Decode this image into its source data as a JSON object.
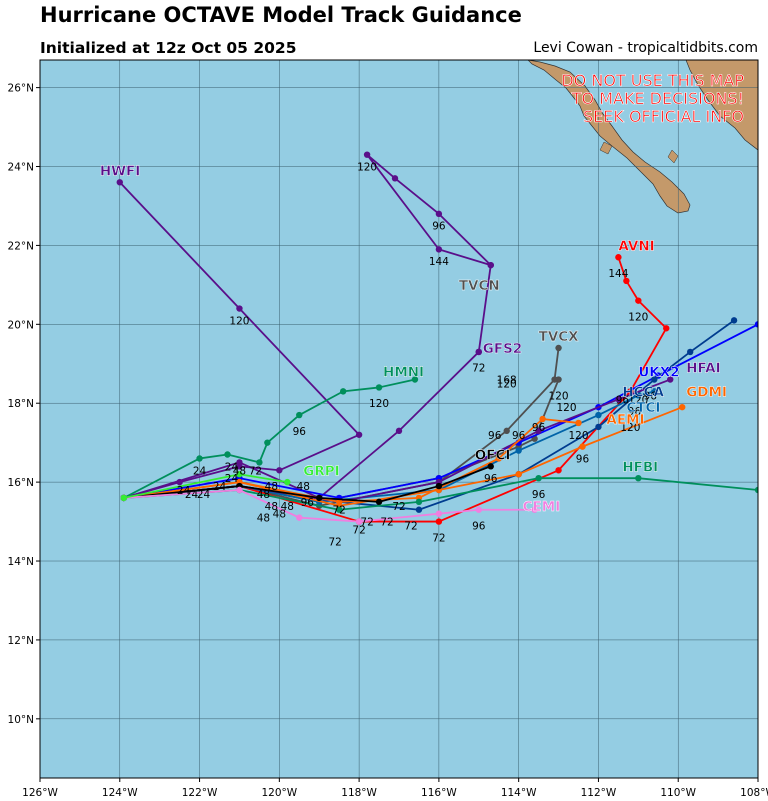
{
  "header": {
    "title": "Hurricane OCTAVE Model Track Guidance",
    "subtitle": "Initialized at 12z Oct 05 2025",
    "credit": "Levi Cowan - tropicaltidbits.com"
  },
  "warning": [
    "DO NOT USE THIS MAP",
    "TO MAKE DECISIONS!",
    "SEEK OFFICIAL INFO"
  ],
  "map": {
    "lon_range": [
      -126,
      -108
    ],
    "lat_range": [
      8.5,
      26.7
    ],
    "ocean_color": "#94cde3",
    "land_color": "#c4996a",
    "lon_ticks": [
      {
        "v": -126,
        "label": "126°W"
      },
      {
        "v": -124,
        "label": "124°W"
      },
      {
        "v": -122,
        "label": "122°W"
      },
      {
        "v": -120,
        "label": "120°W"
      },
      {
        "v": -118,
        "label": "118°W"
      },
      {
        "v": -116,
        "label": "116°W"
      },
      {
        "v": -114,
        "label": "114°W"
      },
      {
        "v": -112,
        "label": "112°W"
      },
      {
        "v": -110,
        "label": "110°W"
      },
      {
        "v": -108,
        "label": "108°W"
      }
    ],
    "lat_ticks": [
      {
        "v": 10,
        "label": "10°N"
      },
      {
        "v": 12,
        "label": "12°N"
      },
      {
        "v": 14,
        "label": "14°N"
      },
      {
        "v": 16,
        "label": "16°N"
      },
      {
        "v": 18,
        "label": "18°N"
      },
      {
        "v": 20,
        "label": "20°N"
      },
      {
        "v": 22,
        "label": "22°N"
      },
      {
        "v": 24,
        "label": "24°N"
      },
      {
        "v": 26,
        "label": "26°N"
      }
    ]
  },
  "tracks": [
    {
      "name": "HWFI",
      "color": "#5a0f8a",
      "label_at": [
        -124.5,
        23.9
      ],
      "points": [
        [
          -123.9,
          15.6
        ],
        [
          -122.5,
          16.0
        ],
        [
          -121.0,
          16.4
        ],
        [
          -120.0,
          16.3
        ],
        [
          -118.0,
          17.2
        ],
        [
          -121.0,
          20.4
        ],
        [
          -124.0,
          23.6
        ]
      ],
      "hours": [
        {
          "h": "120",
          "at": [
            -121.0,
            20.1
          ]
        }
      ]
    },
    {
      "name": "GFS2",
      "color": "#5a0f8a",
      "label_at": [
        -114.9,
        19.4
      ],
      "points": [
        [
          -123.9,
          15.6
        ],
        [
          -121.0,
          16.5
        ],
        [
          -119.0,
          15.6
        ],
        [
          -117.0,
          17.3
        ],
        [
          -115.0,
          19.3
        ],
        [
          -14.7,
          21.5
        ],
        [
          -116.0,
          21.9
        ],
        [
          -117.8,
          24.3
        ],
        [
          -117.1,
          23.7
        ],
        [
          -116.0,
          22.8
        ],
        [
          -114.7,
          21.5
        ],
        [
          -115.0,
          19.3
        ]
      ],
      "hours": [
        {
          "h": "72",
          "at": [
            -115.0,
            18.9
          ]
        },
        {
          "h": "144",
          "at": [
            -116.0,
            21.6
          ]
        },
        {
          "h": "120",
          "at": [
            -117.8,
            24.0
          ]
        },
        {
          "h": "96",
          "at": [
            -116.0,
            22.5
          ]
        }
      ]
    },
    {
      "name": "TVCN",
      "color": "#4f4f4f",
      "label_at": [
        -115.5,
        21.0
      ],
      "points": [
        [
          -123.9,
          15.6
        ],
        [
          -121.0,
          15.9
        ],
        [
          -119.0,
          15.5
        ],
        [
          -116.0,
          16.1
        ],
        [
          -114.0,
          16.9
        ],
        [
          -113.6,
          17.1
        ],
        [
          -113.0,
          18.6
        ]
      ],
      "hours": [
        {
          "h": "96",
          "at": [
            -114.6,
            17.2
          ]
        },
        {
          "h": "120",
          "at": [
            -114.3,
            18.5
          ]
        }
      ]
    },
    {
      "name": "TVCX",
      "color": "#4f4f4f",
      "label_at": [
        -113.5,
        19.7
      ],
      "points": [
        [
          -123.9,
          15.6
        ],
        [
          -121.0,
          15.9
        ],
        [
          -119.0,
          15.4
        ],
        [
          -116.0,
          16.0
        ],
        [
          -114.3,
          17.3
        ],
        [
          -113.1,
          18.6
        ],
        [
          -113.0,
          19.4
        ]
      ],
      "hours": [
        {
          "h": "120",
          "at": [
            -113.0,
            18.2
          ]
        }
      ]
    },
    {
      "name": "HMNI",
      "color": "#008f5c",
      "label_at": [
        -117.4,
        18.8
      ],
      "points": [
        [
          -123.9,
          15.6
        ],
        [
          -122.0,
          16.6
        ],
        [
          -121.3,
          16.7
        ],
        [
          -120.5,
          16.5
        ],
        [
          -120.3,
          17.0
        ],
        [
          -119.5,
          17.7
        ],
        [
          -118.4,
          18.3
        ],
        [
          -117.5,
          18.4
        ],
        [
          -116.6,
          18.6
        ]
      ],
      "hours": [
        {
          "h": "96",
          "at": [
            -119.5,
            17.3
          ]
        },
        {
          "h": "120",
          "at": [
            -117.5,
            18.0
          ]
        }
      ]
    },
    {
      "name": "AVNI",
      "color": "#ff0000",
      "label_at": [
        -111.5,
        22.0
      ],
      "points": [
        [
          -123.9,
          15.6
        ],
        [
          -121.0,
          15.9
        ],
        [
          -118.0,
          15.0
        ],
        [
          -116.0,
          15.0
        ],
        [
          -113.0,
          16.3
        ],
        [
          -111.2,
          18.3
        ],
        [
          -10.3,
          19.9
        ],
        [
          -111.0,
          20.6
        ],
        [
          -111.3,
          21.1
        ],
        [
          -111.5,
          21.7
        ]
      ],
      "hours": [
        {
          "h": "72",
          "at": [
            -116.0,
            14.6
          ]
        },
        {
          "h": "120",
          "at": [
            -111.0,
            20.2
          ]
        },
        {
          "h": "144",
          "at": [
            -111.5,
            21.3
          ]
        }
      ]
    },
    {
      "name": "UKX2",
      "color": "#0000ff",
      "label_at": [
        -111.0,
        18.8
      ],
      "points": [
        [
          -123.9,
          15.6
        ],
        [
          -121.0,
          16.1
        ],
        [
          -118.5,
          15.6
        ],
        [
          -116.0,
          16.1
        ],
        [
          -114.0,
          17.0
        ],
        [
          -112.0,
          17.9
        ],
        [
          -110.5,
          18.7
        ],
        [
          -108.0,
          20.0
        ]
      ],
      "hours": []
    },
    {
      "name": "HCCA",
      "color": "#003c8f",
      "label_at": [
        -111.4,
        18.3
      ],
      "points": [
        [
          -123.9,
          15.6
        ],
        [
          -121.0,
          15.9
        ],
        [
          -118.5,
          15.5
        ],
        [
          -116.5,
          15.3
        ],
        [
          -114.0,
          16.2
        ],
        [
          -112.0,
          17.4
        ],
        [
          -110.6,
          18.6
        ],
        [
          -109.7,
          19.3
        ],
        [
          -108.6,
          20.1
        ]
      ],
      "hours": [
        {
          "h": "96",
          "at": [
            -111.4,
            18.1
          ]
        }
      ]
    },
    {
      "name": "CTCI",
      "color": "#0063a8",
      "label_at": [
        -111.3,
        17.9
      ],
      "points": [
        [
          -123.9,
          15.6
        ],
        [
          -121.0,
          15.9
        ],
        [
          -119.0,
          15.5
        ],
        [
          -116.0,
          15.8
        ],
        [
          -114.0,
          16.8
        ],
        [
          -112.0,
          17.7
        ],
        [
          -111.0,
          18.2
        ],
        [
          -110.6,
          18.3
        ]
      ],
      "hours": [
        {
          "h": "120",
          "at": [
            -111.0,
            18.1
          ]
        }
      ]
    },
    {
      "name": "HFAI",
      "color": "#5a0f8a",
      "label_at": [
        -109.8,
        18.9
      ],
      "points": [
        [
          -123.9,
          15.6
        ],
        [
          -121.0,
          15.9
        ],
        [
          -118.5,
          15.5
        ],
        [
          -116.0,
          16.0
        ],
        [
          -113.5,
          17.3
        ],
        [
          -111.5,
          18.1
        ],
        [
          -10.2,
          18.6
        ]
      ],
      "hours": []
    },
    {
      "name": "GDMI",
      "color": "#ff6600",
      "label_at": [
        -9.8,
        18.3
      ],
      "points": [
        [
          -123.9,
          15.6
        ],
        [
          -121.0,
          16.0
        ],
        [
          -118.5,
          15.4
        ],
        [
          -116.0,
          15.8
        ],
        [
          -114.0,
          16.2
        ],
        [
          -112.4,
          16.9
        ],
        [
          -109.9,
          17.9
        ]
      ],
      "hours": [
        {
          "h": "96",
          "at": [
            -112.4,
            16.6
          ]
        },
        {
          "h": "120",
          "at": [
            -111.2,
            17.4
          ]
        }
      ]
    },
    {
      "name": "AEMI",
      "color": "#ff6600",
      "label_at": [
        -111.8,
        17.6
      ],
      "points": [
        [
          -123.9,
          15.6
        ],
        [
          -121.0,
          16.0
        ],
        [
          -118.5,
          15.5
        ],
        [
          -116.5,
          15.6
        ],
        [
          -114.5,
          16.6
        ],
        [
          -113.4,
          17.6
        ],
        [
          -112.5,
          17.5
        ]
      ],
      "hours": [
        {
          "h": "120",
          "at": [
            -112.5,
            17.2
          ]
        }
      ]
    },
    {
      "name": "OFCI",
      "color": "#000000",
      "label_at": [
        -115.1,
        16.7
      ],
      "points": [
        [
          -123.9,
          15.6
        ],
        [
          -121.0,
          15.9
        ],
        [
          -119.0,
          15.6
        ],
        [
          -117.5,
          15.5
        ],
        [
          -116.0,
          15.9
        ],
        [
          -114.7,
          16.4
        ]
      ],
      "hours": [
        {
          "h": "96",
          "at": [
            -114.7,
            16.1
          ]
        }
      ]
    },
    {
      "name": "HFBI",
      "color": "#008f5c",
      "label_at": [
        -11.4,
        16.4
      ],
      "points": [
        [
          -123.9,
          15.6
        ],
        [
          -121.0,
          15.8
        ],
        [
          -118.5,
          15.3
        ],
        [
          -116.5,
          15.5
        ],
        [
          -113.5,
          16.1
        ],
        [
          -111.0,
          16.1
        ],
        [
          -108.0,
          15.8
        ]
      ],
      "hours": [
        {
          "h": "96",
          "at": [
            -113.5,
            15.7
          ]
        }
      ]
    },
    {
      "name": "CEMI",
      "color": "#f07fe0",
      "label_at": [
        -113.9,
        15.4
      ],
      "points": [
        [
          -123.9,
          15.6
        ],
        [
          -121.0,
          15.8
        ],
        [
          -119.5,
          15.1
        ],
        [
          -118.0,
          15.0
        ],
        [
          -116.0,
          15.2
        ],
        [
          -115.0,
          15.3
        ],
        [
          -113.6,
          15.3
        ]
      ],
      "hours": [
        {
          "h": "96",
          "at": [
            -115.0,
            14.9
          ]
        }
      ]
    },
    {
      "name": "GRPI",
      "color": "#33ee33",
      "label_at": [
        -119.4,
        16.3
      ],
      "points": [
        [
          -123.9,
          15.6
        ],
        [
          -121.0,
          16.2
        ],
        [
          -119.8,
          16.0
        ]
      ],
      "hours": [
        {
          "h": "48",
          "at": [
            -120.2,
            15.9
          ]
        }
      ]
    }
  ],
  "stray_hours": [
    {
      "h": "72",
      "at": [
        -118.6,
        14.5
      ]
    },
    {
      "h": "72",
      "at": [
        -118.0,
        14.8
      ]
    },
    {
      "h": "72",
      "at": [
        -117.8,
        15.0
      ]
    },
    {
      "h": "72",
      "at": [
        -117.3,
        15.0
      ]
    },
    {
      "h": "72",
      "at": [
        -116.7,
        14.9
      ]
    },
    {
      "h": "72",
      "at": [
        -118.5,
        15.3
      ]
    },
    {
      "h": "72",
      "at": [
        -117.0,
        15.4
      ]
    },
    {
      "h": "96",
      "at": [
        -119.3,
        15.5
      ]
    },
    {
      "h": "48",
      "at": [
        -120.4,
        15.1
      ]
    },
    {
      "h": "48",
      "at": [
        -120.0,
        15.2
      ]
    },
    {
      "h": "48",
      "at": [
        -119.8,
        15.4
      ]
    },
    {
      "h": "48",
      "at": [
        -120.4,
        15.7
      ]
    },
    {
      "h": "48",
      "at": [
        -120.2,
        15.4
      ]
    },
    {
      "h": "48",
      "at": [
        -121.0,
        16.3
      ]
    },
    {
      "h": "72",
      "at": [
        -120.6,
        16.3
      ]
    },
    {
      "h": "24",
      "at": [
        -122.0,
        16.3
      ]
    },
    {
      "h": "24",
      "at": [
        -122.2,
        15.7
      ]
    },
    {
      "h": "24",
      "at": [
        -121.9,
        15.7
      ]
    },
    {
      "h": "24",
      "at": [
        -122.4,
        15.8
      ]
    },
    {
      "h": "24",
      "at": [
        -121.5,
        15.9
      ]
    },
    {
      "h": "24",
      "at": [
        -121.2,
        16.4
      ]
    },
    {
      "h": "24",
      "at": [
        -121.2,
        16.1
      ]
    },
    {
      "h": "48",
      "at": [
        -119.4,
        15.9
      ]
    },
    {
      "h": "168",
      "at": [
        -114.3,
        18.6
      ]
    },
    {
      "h": "96",
      "at": [
        -114.0,
        17.2
      ]
    },
    {
      "h": "96",
      "at": [
        -113.5,
        17.4
      ]
    },
    {
      "h": "120",
      "at": [
        -112.8,
        17.9
      ]
    },
    {
      "h": "96",
      "at": [
        -111.1,
        17.8
      ]
    },
    {
      "h": "96",
      "at": [
        -110.7,
        18.2
      ]
    }
  ]
}
